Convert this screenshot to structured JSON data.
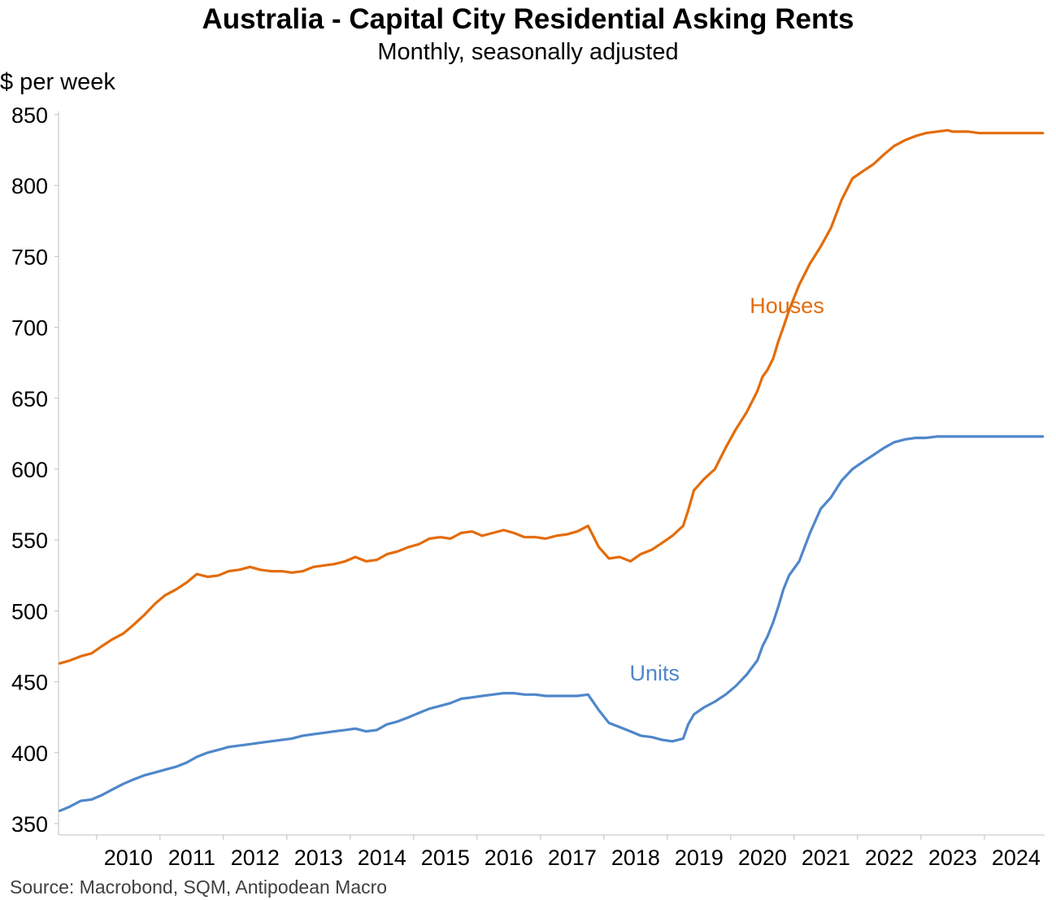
{
  "chart_data": {
    "type": "line",
    "title": "Australia - Capital City Residential Asking Rents",
    "subtitle": "Monthly, seasonally adjusted",
    "ylabel": "$ per week",
    "xlabel": "",
    "source": "Source: Macrobond, SQM, Antipodean Macro",
    "ylim": [
      350,
      850
    ],
    "yticks": [
      350,
      400,
      450,
      500,
      550,
      600,
      650,
      700,
      750,
      800,
      850
    ],
    "xlim": [
      2009.4,
      2024.95
    ],
    "xticks": [
      2010,
      2011,
      2012,
      2013,
      2014,
      2015,
      2016,
      2017,
      2018,
      2019,
      2020,
      2021,
      2022,
      2023,
      2024
    ],
    "grid": false,
    "legend": "inline labels",
    "colors": {
      "houses": "#E36C0A",
      "units": "#4F87CA"
    },
    "series": [
      {
        "name": "Houses",
        "color": "#E36C0A",
        "x": [
          2009.42,
          2009.58,
          2009.75,
          2009.92,
          2010.08,
          2010.25,
          2010.42,
          2010.58,
          2010.75,
          2010.92,
          2011.08,
          2011.25,
          2011.42,
          2011.58,
          2011.75,
          2011.92,
          2012.08,
          2012.25,
          2012.42,
          2012.58,
          2012.75,
          2012.92,
          2013.08,
          2013.25,
          2013.42,
          2013.58,
          2013.75,
          2013.92,
          2014.08,
          2014.25,
          2014.42,
          2014.58,
          2014.75,
          2014.92,
          2015.08,
          2015.25,
          2015.42,
          2015.58,
          2015.75,
          2015.92,
          2016.08,
          2016.25,
          2016.42,
          2016.58,
          2016.75,
          2016.92,
          2017.08,
          2017.25,
          2017.42,
          2017.58,
          2017.75,
          2017.92,
          2018.08,
          2018.25,
          2018.42,
          2018.58,
          2018.75,
          2018.92,
          2019.08,
          2019.25,
          2019.33,
          2019.42,
          2019.58,
          2019.75,
          2019.92,
          2020.08,
          2020.25,
          2020.42,
          2020.5,
          2020.58,
          2020.67,
          2020.75,
          2020.83,
          2020.92,
          2021.08,
          2021.25,
          2021.42,
          2021.58,
          2021.75,
          2021.92,
          2022.08,
          2022.25,
          2022.42,
          2022.58,
          2022.75,
          2022.92,
          2023.08,
          2023.25,
          2023.42,
          2023.5,
          2023.58,
          2023.75,
          2023.92,
          2024.08,
          2024.25,
          2024.42,
          2024.58,
          2024.75,
          2024.92
        ],
        "values": [
          463,
          465,
          468,
          470,
          475,
          480,
          484,
          490,
          497,
          505,
          511,
          515,
          520,
          526,
          524,
          525,
          528,
          529,
          531,
          529,
          528,
          528,
          527,
          528,
          531,
          532,
          533,
          535,
          538,
          535,
          536,
          540,
          542,
          545,
          547,
          551,
          552,
          551,
          555,
          556,
          553,
          555,
          557,
          555,
          552,
          552,
          551,
          553,
          554,
          556,
          560,
          545,
          537,
          538,
          535,
          540,
          543,
          548,
          553,
          560,
          571,
          585,
          593,
          600,
          615,
          628,
          640,
          655,
          665,
          670,
          678,
          690,
          700,
          712,
          730,
          745,
          757,
          770,
          790,
          805,
          810,
          815,
          822,
          828,
          832,
          835,
          837,
          838,
          839,
          838,
          838,
          838,
          837,
          837,
          837,
          837,
          837,
          837,
          837
        ],
        "label": "Houses"
      },
      {
        "name": "Units",
        "color": "#4F87CA",
        "x": [
          2009.42,
          2009.58,
          2009.75,
          2009.92,
          2010.08,
          2010.25,
          2010.42,
          2010.58,
          2010.75,
          2010.92,
          2011.08,
          2011.25,
          2011.42,
          2011.58,
          2011.75,
          2011.92,
          2012.08,
          2012.25,
          2012.42,
          2012.58,
          2012.75,
          2012.92,
          2013.08,
          2013.25,
          2013.42,
          2013.58,
          2013.75,
          2013.92,
          2014.08,
          2014.25,
          2014.42,
          2014.58,
          2014.75,
          2014.92,
          2015.08,
          2015.25,
          2015.42,
          2015.58,
          2015.75,
          2015.92,
          2016.08,
          2016.25,
          2016.42,
          2016.58,
          2016.75,
          2016.92,
          2017.08,
          2017.25,
          2017.42,
          2017.58,
          2017.75,
          2017.92,
          2018.08,
          2018.25,
          2018.42,
          2018.58,
          2018.75,
          2018.92,
          2019.08,
          2019.25,
          2019.33,
          2019.42,
          2019.58,
          2019.75,
          2019.92,
          2020.08,
          2020.25,
          2020.42,
          2020.5,
          2020.58,
          2020.67,
          2020.75,
          2020.83,
          2020.92,
          2021.08,
          2021.25,
          2021.42,
          2021.58,
          2021.75,
          2021.92,
          2022.08,
          2022.25,
          2022.42,
          2022.58,
          2022.75,
          2022.92,
          2023.08,
          2023.25,
          2023.42,
          2023.5,
          2023.58,
          2023.75,
          2023.92,
          2024.08,
          2024.25,
          2024.42,
          2024.58,
          2024.75,
          2024.92
        ],
        "values": [
          359,
          362,
          366,
          367,
          370,
          374,
          378,
          381,
          384,
          386,
          388,
          390,
          393,
          397,
          400,
          402,
          404,
          405,
          406,
          407,
          408,
          409,
          410,
          412,
          413,
          414,
          415,
          416,
          417,
          415,
          416,
          420,
          422,
          425,
          428,
          431,
          433,
          435,
          438,
          439,
          440,
          441,
          442,
          442,
          441,
          441,
          440,
          440,
          440,
          440,
          441,
          430,
          421,
          418,
          415,
          412,
          411,
          409,
          408,
          410,
          420,
          427,
          432,
          436,
          441,
          447,
          455,
          465,
          475,
          482,
          492,
          503,
          515,
          525,
          535,
          555,
          572,
          580,
          592,
          600,
          605,
          610,
          615,
          619,
          621,
          622,
          622,
          623,
          623,
          623,
          623,
          623,
          623,
          623,
          623,
          623,
          623,
          623,
          623
        ],
        "label": "Units"
      }
    ]
  }
}
